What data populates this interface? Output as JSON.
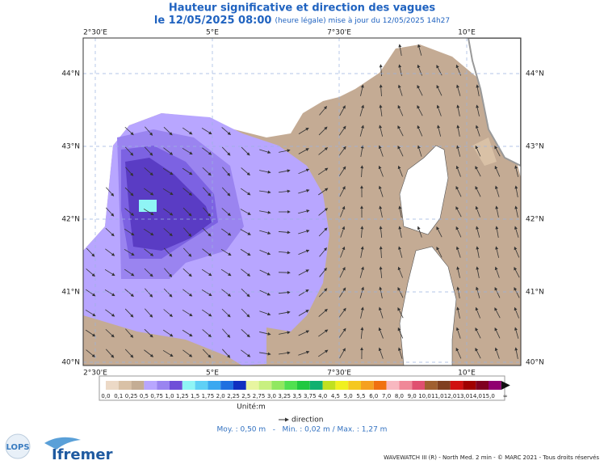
{
  "header": {
    "title": "Hauteur significative et direction des vagues",
    "date": "le 12/05/2025 08:00",
    "update": "(heure légale) mise à jour du 12/05/2025 14h27"
  },
  "map": {
    "lon_labels": [
      "2°30'E",
      "5°E",
      "7°30'E",
      "10°E"
    ],
    "lat_labels": [
      "44°N",
      "43°N",
      "42°N",
      "41°N",
      "40°N"
    ]
  },
  "legend": {
    "labels": [
      "0,0",
      "0,1",
      "0,25",
      "0,5",
      "0,75",
      "1,0",
      "1,25",
      "1,5",
      "1,75",
      "2,0",
      "2,25",
      "2,5",
      "2,75",
      "3,0",
      "3,25",
      "3,5",
      "3,75",
      "4,0",
      "4,5",
      "5,0",
      "5,5",
      "6,0",
      "7,0",
      "8,0",
      "9,0",
      "10,0",
      "11,0",
      "12,0",
      "13,0",
      "14,0",
      "15,0",
      "∞"
    ],
    "colors": [
      "#ecd9c6",
      "#d9c1a6",
      "#c4ad94",
      "#b8a6ff",
      "#9a84f0",
      "#6f4fd8",
      "#8ff5f5",
      "#5fd0f5",
      "#3aa8f0",
      "#2070e0",
      "#1030c0",
      "#e8f5a0",
      "#c8f080",
      "#90e860",
      "#50e050",
      "#20c840",
      "#10b070",
      "#c0e020",
      "#f0f020",
      "#f5c820",
      "#f5a020",
      "#f07010",
      "#f8b8c0",
      "#f08898",
      "#e05070",
      "#a06030",
      "#804020",
      "#d01010",
      "#a00000",
      "#800020",
      "#900070"
    ],
    "unit": "Unité:m",
    "direction": "direction",
    "stats": "Moy. : 0,50 m   -   Min. : 0,02 m / Max. : 1,27 m"
  },
  "footer": {
    "credit": "WAVEWATCH III (R) - North Med. 2 min - © MARC 2021 - Tous droits réservés",
    "logo1": "LOPS",
    "logo2": "Ifremer"
  }
}
